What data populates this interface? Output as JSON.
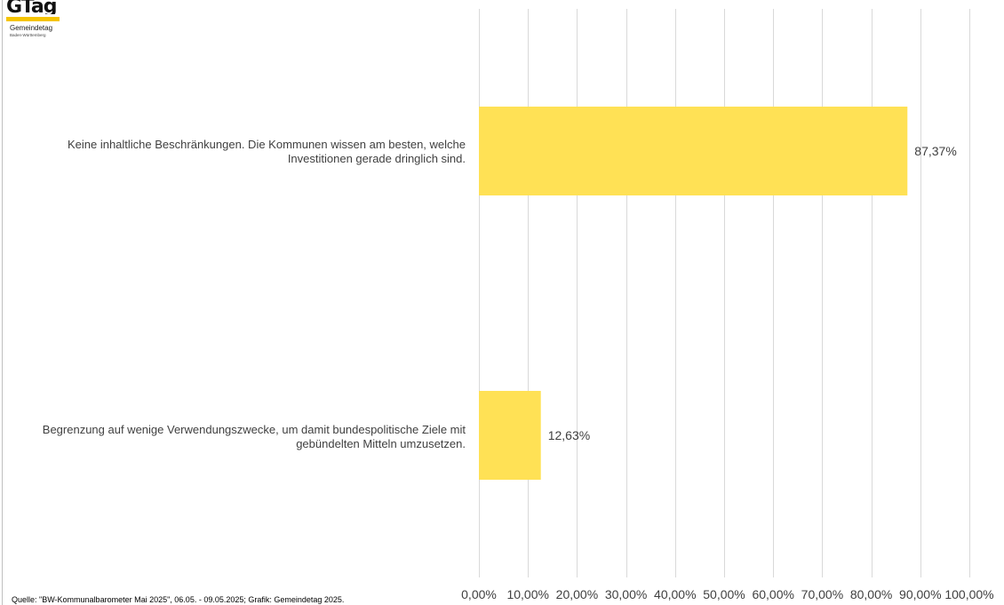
{
  "logo": {
    "mark_text": "GTag",
    "org_name": "Gemeindetag",
    "org_sub": "Baden-Württemberg"
  },
  "footer": {
    "source": "Quelle: \"BW-Kommunalbarometer Mai 2025\", 06.05. - 09.05.2025; Grafik: Gemeindetag 2025."
  },
  "chart_data": {
    "type": "bar",
    "orientation": "horizontal",
    "categories": [
      "Keine inhaltliche Beschränkungen. Die Kommunen wissen am besten, welche Investitionen gerade dringlich sind.",
      "Begrenzung auf wenige Verwendungszwecke, um damit bundespolitische Ziele mit gebündelten Mitteln umzusetzen."
    ],
    "category_lines": [
      [
        "Keine inhaltliche Beschränkungen. Die Kommunen wissen am besten, welche",
        "Investitionen gerade dringlich sind."
      ],
      [
        "Begrenzung auf wenige Verwendungszwecke, um damit bundespolitische Ziele mit",
        "gebündelten Mitteln umzusetzen."
      ]
    ],
    "values": [
      87.37,
      12.63
    ],
    "data_labels": [
      "87,37%",
      "12,63%"
    ],
    "xlim": [
      0,
      100
    ],
    "tick_labels": [
      "0,00%",
      "10,00%",
      "20,00%",
      "30,00%",
      "40,00%",
      "50,00%",
      "60,00%",
      "70,00%",
      "80,00%",
      "90,00%",
      "100,00%"
    ],
    "grid": true,
    "bar_color": "#FFE155",
    "grid_color": "#D9D9D9"
  }
}
